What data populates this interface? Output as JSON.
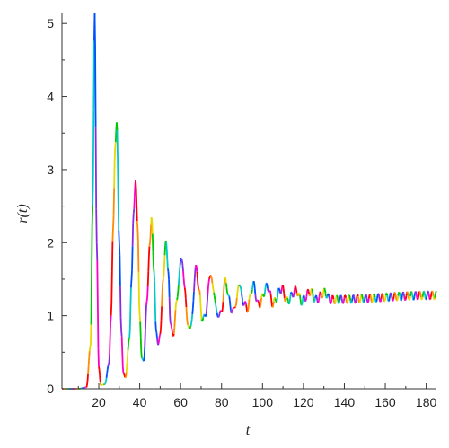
{
  "chart_data": {
    "type": "line",
    "title": "",
    "xlabel": "t",
    "ylabel": "r(t)",
    "xlim": [
      2,
      185
    ],
    "ylim": [
      0,
      5.15
    ],
    "xticks": [
      20,
      40,
      60,
      80,
      100,
      120,
      140,
      160,
      180
    ],
    "yticks": [
      0,
      1,
      2,
      3,
      4,
      5
    ],
    "grid": false,
    "legend": "none",
    "series": [
      {
        "color_mode": "rainbow",
        "points": [
          [
            2,
            0.0
          ],
          [
            10,
            0.0
          ],
          [
            14,
            0.02
          ],
          [
            16,
            0.6
          ],
          [
            17,
            2.5
          ],
          [
            18,
            5.15
          ],
          [
            19,
            2.0
          ],
          [
            20,
            0.3
          ],
          [
            21,
            0.05
          ],
          [
            23,
            0.06
          ],
          [
            25,
            0.35
          ],
          [
            26,
            1.0
          ],
          [
            27,
            2.2
          ],
          [
            28,
            3.3
          ],
          [
            28.8,
            3.65
          ],
          [
            30,
            2.0
          ],
          [
            31,
            0.8
          ],
          [
            32,
            0.22
          ],
          [
            33,
            0.15
          ],
          [
            35,
            0.7
          ],
          [
            36,
            1.5
          ],
          [
            37,
            2.4
          ],
          [
            38,
            2.85
          ],
          [
            39,
            2.2
          ],
          [
            40,
            1.0
          ],
          [
            41,
            0.42
          ],
          [
            42,
            0.38
          ],
          [
            43.5,
            1.2
          ],
          [
            45,
            2.0
          ],
          [
            45.8,
            2.35
          ],
          [
            47,
            1.6
          ],
          [
            48,
            0.8
          ],
          [
            49,
            0.6
          ],
          [
            50,
            0.75
          ],
          [
            51.5,
            1.5
          ],
          [
            52.8,
            2.03
          ],
          [
            54,
            1.6
          ],
          [
            55,
            0.9
          ],
          [
            56.5,
            0.72
          ],
          [
            58,
            1.2
          ],
          [
            60.4,
            1.8
          ],
          [
            62,
            1.4
          ],
          [
            63.5,
            0.85
          ],
          [
            65,
            0.85
          ],
          [
            67.6,
            1.67
          ],
          [
            69,
            1.35
          ],
          [
            70.5,
            0.95
          ],
          [
            72,
            1.0
          ],
          [
            74.6,
            1.58
          ],
          [
            76,
            1.35
          ],
          [
            78,
            1.0
          ],
          [
            80,
            1.05
          ],
          [
            81.8,
            1.5
          ],
          [
            83.5,
            1.25
          ],
          [
            85,
            1.05
          ],
          [
            87,
            1.15
          ],
          [
            88.6,
            1.45
          ],
          [
            90.5,
            1.2
          ],
          [
            92.5,
            1.1
          ],
          [
            95.5,
            1.42
          ],
          [
            98,
            1.15
          ],
          [
            102.5,
            1.4
          ],
          [
            105,
            1.17
          ],
          [
            109.5,
            1.37
          ],
          [
            112,
            1.2
          ],
          [
            116.5,
            1.35
          ],
          [
            119,
            1.2
          ],
          [
            123.5,
            1.33
          ],
          [
            126,
            1.22
          ],
          [
            130.5,
            1.32
          ],
          [
            133,
            1.22
          ],
          [
            185,
            1.28
          ]
        ]
      }
    ]
  }
}
